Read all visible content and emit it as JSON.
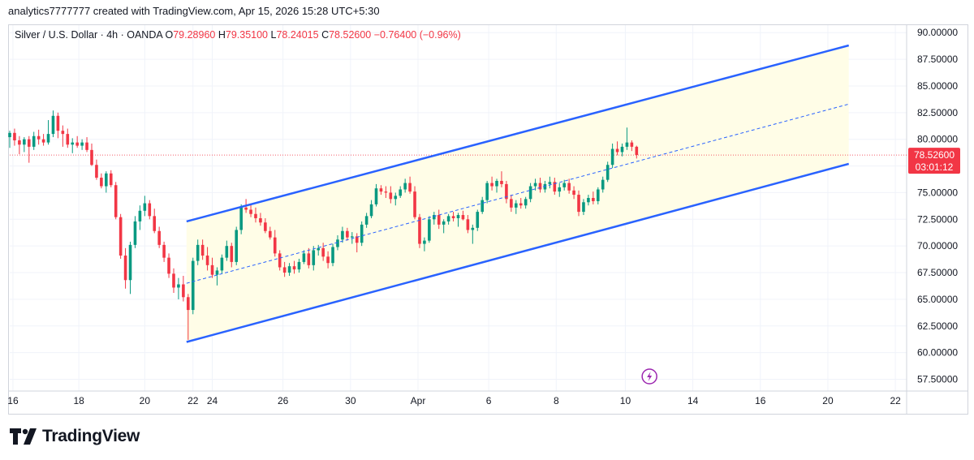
{
  "header": {
    "caption": "analytics7777777 created with TradingView.com, Apr 15, 2026 15:28 UTC+5:30"
  },
  "legend": {
    "symbol": "Silver / U.S. Dollar · 4h · OANDA",
    "o_label": "O",
    "o_val": "79.28960",
    "h_label": "H",
    "h_val": "79.35100",
    "l_label": "L",
    "l_val": "78.24015",
    "c_label": "C",
    "c_val": "78.52600",
    "change": "−0.76400 (−0.96%)"
  },
  "price_tag": {
    "price": "78.52600",
    "countdown": "03:01:12"
  },
  "brand": {
    "name": "TradingView"
  },
  "colors": {
    "up": "#089981",
    "down": "#f23645",
    "channel": "#2962ff",
    "channel_fill": "#fffde7",
    "grid": "#f0f3fa",
    "text": "#131722"
  },
  "icons": {
    "flash": "lightning-icon",
    "logo": "tradingview-logo-icon"
  },
  "chart_data": {
    "type": "candlestick",
    "y_ticks": [
      "90.00000",
      "87.50000",
      "85.00000",
      "82.50000",
      "80.00000",
      "77.50000",
      "75.00000",
      "72.50000",
      "70.00000",
      "67.50000",
      "65.00000",
      "62.50000",
      "60.00000",
      "57.50000"
    ],
    "y_tick_values": [
      90,
      87.5,
      85,
      82.5,
      80,
      77.5,
      75,
      72.5,
      70,
      67.5,
      65,
      62.5,
      60,
      57.5
    ],
    "ylim": [
      56.4,
      90.7
    ],
    "x_ticks": [
      {
        "label": "16",
        "t": 2
      },
      {
        "label": "18",
        "t": 43
      },
      {
        "label": "20",
        "t": 84
      },
      {
        "label": "22",
        "t": 114
      },
      {
        "label": "24",
        "t": 126
      },
      {
        "label": "26",
        "t": 170
      },
      {
        "label": "30",
        "t": 212
      },
      {
        "label": "Apr",
        "t": 254
      },
      {
        "label": "6",
        "t": 298
      },
      {
        "label": "8",
        "t": 340
      },
      {
        "label": "10",
        "t": 383
      },
      {
        "label": "14",
        "t": 425
      },
      {
        "label": "16",
        "t": 467
      },
      {
        "label": "20",
        "t": 509
      },
      {
        "label": "22",
        "t": 551
      }
    ],
    "xlim": [
      0,
      558
    ],
    "channel": {
      "upper": [
        [
          110,
          72.3
        ],
        [
          522,
          88.8
        ]
      ],
      "mid": [
        [
          110,
          66.5
        ],
        [
          522,
          83.3
        ]
      ],
      "lower": [
        [
          110,
          61.0
        ],
        [
          522,
          77.7
        ]
      ]
    },
    "current_price": 78.526,
    "candles": [
      [
        0,
        80.2,
        80.8,
        79.2,
        80.6
      ],
      [
        3,
        80.6,
        81.0,
        79.4,
        79.9
      ],
      [
        6,
        79.9,
        80.3,
        78.6,
        79.5
      ],
      [
        9,
        79.5,
        80.2,
        78.8,
        80.0
      ],
      [
        12,
        80.0,
        80.3,
        77.8,
        79.3
      ],
      [
        15,
        79.3,
        80.7,
        79.0,
        80.3
      ],
      [
        18,
        80.3,
        80.9,
        79.5,
        80.0
      ],
      [
        21,
        80.0,
        80.5,
        79.4,
        79.7
      ],
      [
        24,
        79.7,
        81.8,
        79.5,
        80.5
      ],
      [
        27,
        80.5,
        82.7,
        80.2,
        82.2
      ],
      [
        30,
        82.2,
        82.5,
        80.1,
        80.8
      ],
      [
        33,
        80.8,
        81.3,
        79.3,
        80.5
      ],
      [
        36,
        80.5,
        81.0,
        79.2,
        79.5
      ],
      [
        39,
        79.5,
        80.1,
        78.7,
        79.7
      ],
      [
        42,
        79.7,
        80.3,
        79.2,
        79.4
      ],
      [
        45,
        79.4,
        80.0,
        79.0,
        79.7
      ],
      [
        48,
        79.7,
        80.2,
        78.8,
        79.0
      ],
      [
        51,
        79.0,
        79.6,
        77.5,
        77.6
      ],
      [
        54,
        77.6,
        78.1,
        76.2,
        76.4
      ],
      [
        57,
        76.4,
        76.8,
        75.4,
        75.6
      ],
      [
        60,
        75.6,
        77.0,
        75.0,
        76.8
      ],
      [
        63,
        76.8,
        77.1,
        75.5,
        75.7
      ],
      [
        66,
        75.7,
        76.0,
        72.5,
        72.7
      ],
      [
        69,
        72.7,
        73.0,
        68.8,
        69.1
      ],
      [
        72,
        69.1,
        69.8,
        66.0,
        66.8
      ],
      [
        75,
        66.8,
        70.4,
        65.5,
        70.1
      ],
      [
        78,
        70.1,
        72.8,
        69.8,
        72.3
      ],
      [
        81,
        72.3,
        73.8,
        71.5,
        73.3
      ],
      [
        84,
        73.3,
        74.7,
        72.8,
        74.0
      ],
      [
        87,
        74.0,
        74.3,
        72.5,
        72.8
      ],
      [
        90,
        72.8,
        73.5,
        71.2,
        71.4
      ],
      [
        93,
        71.4,
        71.8,
        69.8,
        70.1
      ],
      [
        96,
        70.1,
        70.4,
        68.5,
        68.9
      ],
      [
        99,
        68.9,
        69.3,
        67.0,
        67.4
      ],
      [
        102,
        67.4,
        67.9,
        65.6,
        66.1
      ],
      [
        105,
        66.1,
        67.0,
        65.0,
        66.4
      ],
      [
        108,
        66.4,
        67.2,
        64.8,
        65.2
      ],
      [
        111,
        65.2,
        65.5,
        61.2,
        64.0
      ],
      [
        114,
        64.0,
        68.9,
        63.6,
        68.6
      ],
      [
        117,
        68.6,
        70.6,
        68.2,
        70.1
      ],
      [
        120,
        70.1,
        70.6,
        68.7,
        69.1
      ],
      [
        123,
        69.1,
        69.9,
        67.7,
        68.2
      ],
      [
        126,
        68.2,
        68.9,
        67.0,
        67.3
      ],
      [
        129,
        67.3,
        68.0,
        66.3,
        67.7
      ],
      [
        132,
        67.7,
        69.2,
        67.4,
        68.9
      ],
      [
        135,
        68.9,
        70.5,
        68.6,
        70.0
      ],
      [
        138,
        70.0,
        70.3,
        68.0,
        68.5
      ],
      [
        141,
        68.5,
        71.8,
        68.2,
        71.5
      ],
      [
        144,
        71.5,
        73.9,
        71.1,
        73.6
      ],
      [
        147,
        73.6,
        74.4,
        73.1,
        73.4
      ],
      [
        150,
        73.4,
        73.9,
        72.7,
        73.0
      ],
      [
        153,
        73.0,
        73.6,
        72.2,
        72.6
      ],
      [
        156,
        72.6,
        73.1,
        71.9,
        72.2
      ],
      [
        159,
        72.2,
        72.6,
        71.2,
        71.4
      ],
      [
        162,
        71.4,
        71.8,
        70.6,
        70.8
      ],
      [
        165,
        70.8,
        71.5,
        69.0,
        69.3
      ],
      [
        168,
        69.3,
        69.6,
        67.7,
        68.0
      ],
      [
        171,
        68.0,
        68.5,
        67.1,
        67.5
      ],
      [
        174,
        67.5,
        68.4,
        67.2,
        68.1
      ],
      [
        177,
        68.1,
        68.6,
        67.4,
        67.8
      ],
      [
        180,
        67.8,
        68.8,
        67.5,
        68.5
      ],
      [
        183,
        68.5,
        69.6,
        68.3,
        69.3
      ],
      [
        186,
        69.3,
        69.8,
        67.9,
        68.2
      ],
      [
        189,
        68.2,
        70.0,
        67.7,
        69.6
      ],
      [
        192,
        69.6,
        70.1,
        69.1,
        69.8
      ],
      [
        195,
        69.8,
        70.3,
        68.6,
        69.0
      ],
      [
        198,
        69.0,
        69.5,
        67.9,
        68.4
      ],
      [
        201,
        68.4,
        70.2,
        68.1,
        69.9
      ],
      [
        204,
        69.9,
        71.0,
        69.6,
        70.6
      ],
      [
        207,
        70.6,
        71.8,
        70.3,
        71.4
      ],
      [
        210,
        71.4,
        71.7,
        70.5,
        70.8
      ],
      [
        213,
        70.8,
        71.3,
        70.2,
        70.9
      ],
      [
        216,
        70.9,
        71.2,
        69.4,
        70.3
      ],
      [
        219,
        70.3,
        72.3,
        70.0,
        72.0
      ],
      [
        222,
        72.0,
        73.1,
        71.7,
        72.8
      ],
      [
        225,
        72.8,
        74.3,
        72.6,
        73.9
      ],
      [
        228,
        73.9,
        75.8,
        73.7,
        75.4
      ],
      [
        231,
        75.4,
        75.7,
        74.8,
        75.1
      ],
      [
        234,
        75.1,
        75.6,
        74.5,
        75.0
      ],
      [
        237,
        75.0,
        75.6,
        74.0,
        74.4
      ],
      [
        240,
        74.4,
        75.0,
        73.8,
        74.7
      ],
      [
        243,
        74.7,
        75.6,
        74.5,
        75.3
      ],
      [
        246,
        75.3,
        76.3,
        75.0,
        75.9
      ],
      [
        249,
        75.9,
        76.5,
        74.9,
        75.1
      ],
      [
        252,
        75.1,
        75.6,
        72.5,
        72.7
      ],
      [
        255,
        72.7,
        73.0,
        69.8,
        70.2
      ],
      [
        258,
        70.2,
        70.8,
        69.5,
        70.5
      ],
      [
        261,
        70.5,
        72.8,
        70.3,
        72.5
      ],
      [
        264,
        72.5,
        73.2,
        72.0,
        72.9
      ],
      [
        267,
        72.9,
        73.4,
        71.6,
        72.0
      ],
      [
        270,
        72.0,
        72.5,
        71.2,
        72.3
      ],
      [
        273,
        72.3,
        73.0,
        72.0,
        72.8
      ],
      [
        276,
        72.8,
        73.2,
        72.3,
        72.6
      ],
      [
        279,
        72.6,
        73.1,
        71.8,
        72.9
      ],
      [
        282,
        72.9,
        73.3,
        72.4,
        72.5
      ],
      [
        285,
        72.5,
        72.9,
        71.2,
        71.5
      ],
      [
        288,
        71.5,
        72.0,
        70.2,
        71.7
      ],
      [
        291,
        71.7,
        73.4,
        71.4,
        73.2
      ],
      [
        294,
        73.2,
        74.6,
        73.0,
        74.3
      ],
      [
        297,
        74.3,
        76.1,
        74.0,
        75.9
      ],
      [
        300,
        75.9,
        76.5,
        75.2,
        75.6
      ],
      [
        303,
        75.6,
        76.3,
        75.0,
        76.1
      ],
      [
        306,
        76.1,
        77.0,
        75.5,
        75.8
      ],
      [
        309,
        75.8,
        76.1,
        74.0,
        74.4
      ],
      [
        312,
        74.4,
        74.8,
        73.2,
        73.6
      ],
      [
        315,
        73.6,
        74.3,
        73.0,
        74.0
      ],
      [
        318,
        74.0,
        74.5,
        73.5,
        73.8
      ],
      [
        321,
        73.8,
        74.6,
        73.5,
        74.4
      ],
      [
        324,
        74.4,
        75.9,
        74.1,
        75.6
      ],
      [
        327,
        75.6,
        76.3,
        75.2,
        75.9
      ],
      [
        330,
        75.9,
        76.4,
        75.0,
        75.3
      ],
      [
        333,
        75.3,
        76.1,
        75.0,
        75.8
      ],
      [
        336,
        75.8,
        76.5,
        75.4,
        76.0
      ],
      [
        339,
        76.0,
        76.4,
        74.8,
        75.1
      ],
      [
        342,
        75.1,
        75.9,
        74.6,
        75.5
      ],
      [
        345,
        75.5,
        76.2,
        75.2,
        75.9
      ],
      [
        348,
        75.9,
        76.3,
        74.9,
        75.2
      ],
      [
        351,
        75.2,
        75.6,
        74.4,
        74.8
      ],
      [
        354,
        74.8,
        75.2,
        72.8,
        73.2
      ],
      [
        357,
        73.2,
        74.4,
        72.9,
        74.1
      ],
      [
        360,
        74.1,
        74.8,
        73.8,
        74.5
      ],
      [
        363,
        74.5,
        75.1,
        73.9,
        74.2
      ],
      [
        366,
        74.2,
        75.5,
        73.9,
        75.3
      ],
      [
        369,
        75.3,
        76.5,
        75.0,
        76.2
      ],
      [
        372,
        76.2,
        77.9,
        76.0,
        77.6
      ],
      [
        375,
        77.6,
        79.6,
        77.3,
        79.1
      ],
      [
        378,
        79.1,
        79.8,
        78.5,
        78.8
      ],
      [
        381,
        78.8,
        79.6,
        78.4,
        79.3
      ],
      [
        384,
        79.3,
        81.1,
        79.0,
        79.7
      ],
      [
        387,
        79.7,
        79.9,
        78.9,
        79.3
      ],
      [
        390,
        79.3,
        79.4,
        78.2,
        78.53
      ]
    ]
  }
}
